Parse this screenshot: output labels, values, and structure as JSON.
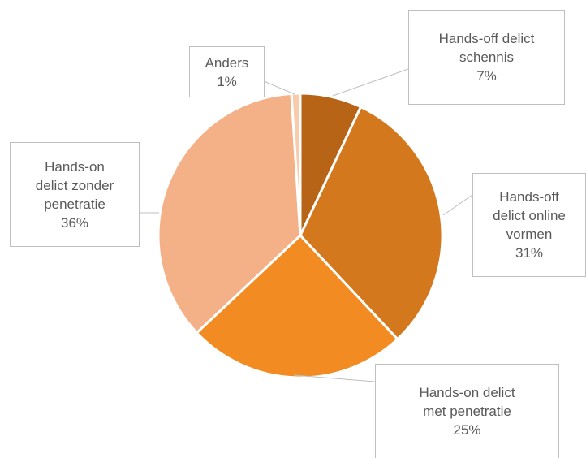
{
  "chart_data": {
    "type": "pie",
    "categories": [
      "Hands-off delict schennis",
      "Hands-off delict online vormen",
      "Hands-on delict met penetratie",
      "Hands-on delict zonder penetratie",
      "Anders"
    ],
    "values": [
      7,
      31,
      25,
      36,
      1
    ],
    "value_labels": [
      "7%",
      "31%",
      "25%",
      "36%",
      "1%"
    ],
    "colors": [
      "#b86417",
      "#d4781e",
      "#f28c22",
      "#f4b087",
      "#f8cbad"
    ]
  }
}
